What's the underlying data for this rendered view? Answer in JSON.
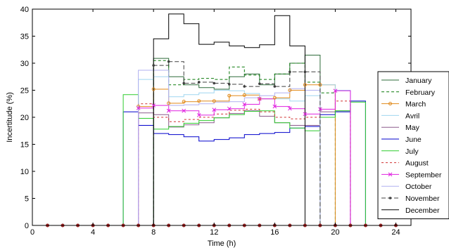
{
  "chart_data": {
    "type": "line",
    "step": true,
    "xlabel": "Time (h)",
    "ylabel": "Incertitude (%)",
    "xlim": [
      0,
      25
    ],
    "ylim": [
      0,
      40
    ],
    "xticks": [
      0,
      4,
      8,
      12,
      16,
      20,
      24
    ],
    "yticks": [
      0,
      5,
      10,
      15,
      20,
      25,
      30,
      35,
      40
    ],
    "grid": false,
    "legend": "right",
    "x": [
      1,
      2,
      3,
      4,
      5,
      6,
      7,
      8,
      9,
      10,
      11,
      12,
      13,
      14,
      15,
      16,
      17,
      18,
      19,
      20,
      21,
      22,
      23,
      24
    ],
    "series": [
      {
        "name": "January",
        "color": "#2e6b3a",
        "dash": "",
        "marker": "none",
        "values": [
          0,
          0,
          0,
          0,
          0,
          0,
          0,
          30.9,
          27.5,
          26,
          25.5,
          25.2,
          27.5,
          28,
          26,
          28,
          30,
          31.5,
          0,
          0,
          0,
          0,
          0,
          0
        ]
      },
      {
        "name": "February",
        "color": "#0a7a0a",
        "dash": "4,3",
        "marker": "none",
        "values": [
          0,
          0,
          0,
          0,
          0,
          0,
          0,
          30.5,
          26,
          27,
          27.2,
          27,
          29.3,
          27.8,
          27,
          28,
          30,
          26.5,
          24.5,
          0,
          0,
          0,
          0,
          0
        ]
      },
      {
        "name": "March",
        "color": "#e08a1a",
        "dash": "",
        "marker": "circle",
        "values": [
          0,
          0,
          0,
          0,
          0,
          0,
          22,
          25.2,
          22.6,
          22.9,
          23,
          23,
          24,
          24.1,
          23.4,
          23.6,
          25,
          26,
          26,
          0,
          0,
          0,
          0,
          0
        ]
      },
      {
        "name": "Avril",
        "color": "#9fd6f0",
        "dash": "",
        "marker": "none",
        "values": [
          0,
          0,
          0,
          0,
          0,
          0,
          27,
          27.5,
          23.8,
          24.2,
          24.5,
          25,
          24.9,
          24.4,
          23.4,
          23.4,
          23,
          24,
          26,
          25,
          0,
          0,
          0,
          0
        ]
      },
      {
        "name": "May",
        "color": "#8b5a8b",
        "dash": "",
        "marker": "none",
        "values": [
          0,
          0,
          0,
          0,
          0,
          0,
          20.8,
          20.5,
          18.2,
          18.6,
          19,
          19.9,
          20.7,
          21.2,
          20.2,
          19,
          18.5,
          18.5,
          21,
          21.2,
          0,
          0,
          0,
          0
        ]
      },
      {
        "name": "June",
        "color": "#0000cc",
        "dash": "",
        "marker": "none",
        "values": [
          0,
          0,
          0,
          0,
          0,
          21,
          18.5,
          17,
          16.8,
          16.4,
          15.6,
          15.9,
          16.2,
          16.8,
          17,
          17.2,
          18,
          18.3,
          20.5,
          21,
          23,
          0,
          0,
          0
        ]
      },
      {
        "name": "July",
        "color": "#2fcc2f",
        "dash": "",
        "marker": "none",
        "values": [
          0,
          0,
          0,
          0,
          0,
          24.2,
          19.8,
          17.8,
          18.3,
          18.9,
          19.4,
          19.9,
          20.5,
          21.1,
          21.2,
          19,
          18,
          17.5,
          20,
          21.2,
          22.8,
          0,
          0,
          0
        ]
      },
      {
        "name": "August",
        "color": "#d03030",
        "dash": "3,3",
        "marker": "none",
        "values": [
          0,
          0,
          0,
          0,
          0,
          0,
          22.5,
          20,
          19.2,
          19.6,
          20,
          20.6,
          21.3,
          21.5,
          21,
          20,
          19.7,
          20,
          21.5,
          23,
          0,
          0,
          0,
          0
        ]
      },
      {
        "name": "September",
        "color": "#e020e0",
        "dash": "",
        "marker": "x",
        "values": [
          0,
          0,
          0,
          0,
          0,
          0,
          21.7,
          22.2,
          21.2,
          21.2,
          20.4,
          21.4,
          21.6,
          22.4,
          23.4,
          22,
          21.6,
          20.6,
          21.5,
          24.9,
          0,
          0,
          0,
          0
        ]
      },
      {
        "name": "October",
        "color": "#b0b0f0",
        "dash": "",
        "marker": "none",
        "values": [
          0,
          0,
          0,
          0,
          0,
          0,
          28.7,
          28.7,
          22.2,
          22.3,
          22.5,
          22.8,
          22.9,
          23.6,
          24,
          24.5,
          25.3,
          25,
          0,
          0,
          0,
          0,
          0,
          0
        ]
      },
      {
        "name": "November",
        "color": "#404040",
        "dash": "6,3",
        "marker": "dot",
        "values": [
          0,
          0,
          0,
          0,
          0,
          0,
          0,
          29.6,
          30.3,
          26.3,
          26.5,
          26.3,
          26.1,
          25.7,
          26.2,
          25.7,
          28.4,
          28.4,
          0,
          0,
          0,
          0,
          0,
          0
        ]
      },
      {
        "name": "December",
        "color": "#000000",
        "dash": "",
        "marker": "none",
        "values": [
          0,
          0,
          0,
          0,
          0,
          0,
          0,
          34.5,
          39.1,
          37.3,
          33.5,
          33.9,
          33.2,
          32.9,
          33.4,
          38.8,
          33.2,
          0,
          0,
          0,
          0,
          0,
          0,
          0
        ]
      }
    ]
  }
}
